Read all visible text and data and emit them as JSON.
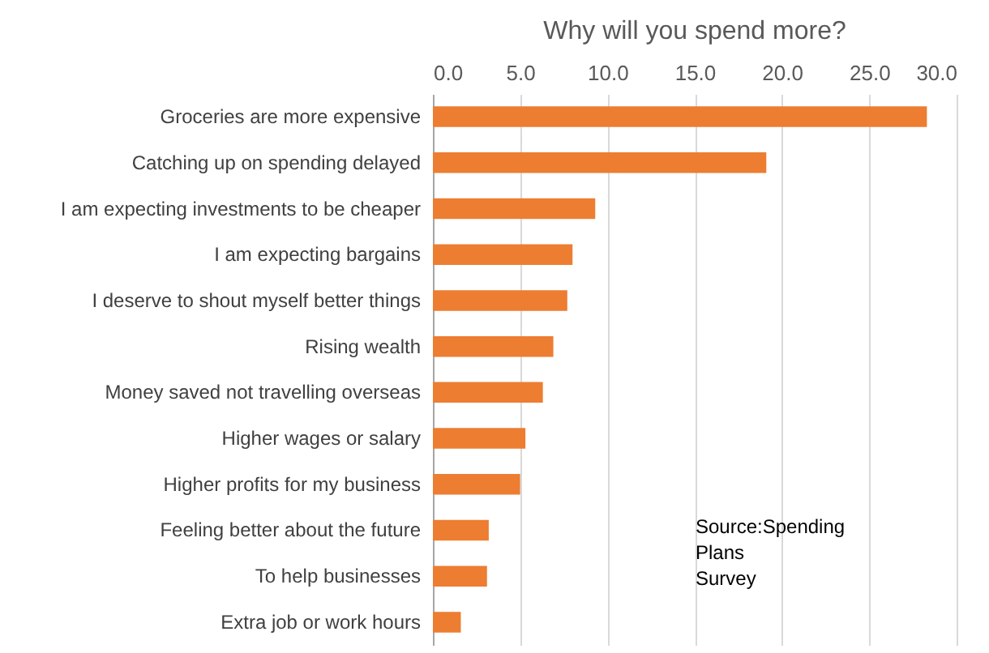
{
  "chart_data": {
    "type": "bar",
    "orientation": "horizontal",
    "title": "Why will you spend more?",
    "categories": [
      "Groceries are more expensive",
      "Catching up on spending delayed",
      "I am expecting investments to be cheaper",
      "I am expecting bargains",
      "I deserve to shout myself better things",
      "Rising wealth",
      "Money saved not travelling overseas",
      "Higher wages or salary",
      "Higher profits for my business",
      "Feeling better about the future",
      "To help businesses",
      "Extra job or work hours"
    ],
    "values": [
      28.3,
      19.1,
      9.3,
      8.0,
      7.7,
      6.9,
      6.3,
      5.3,
      5.0,
      3.2,
      3.1,
      1.6
    ],
    "color": "#ed7d31",
    "xlim": [
      0,
      30
    ],
    "xticks": [
      {
        "value": 0,
        "label": "0.0"
      },
      {
        "value": 5,
        "label": "5.0"
      },
      {
        "value": 10,
        "label": "10.0"
      },
      {
        "value": 15,
        "label": "15.0"
      },
      {
        "value": 20,
        "label": "20.0"
      },
      {
        "value": 25,
        "label": "25.0"
      },
      {
        "value": 30,
        "label": "30.0"
      }
    ],
    "grid": true,
    "annotations": [
      "Source:Spending Plans Survey"
    ]
  }
}
